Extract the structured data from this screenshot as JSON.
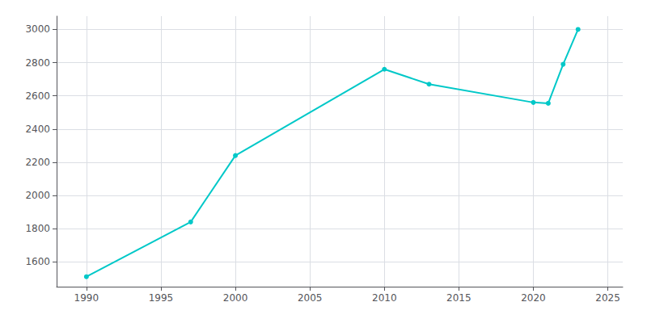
{
  "chart_data": {
    "type": "line",
    "x": [
      1990,
      1997,
      2000,
      2010,
      2013,
      2020,
      2021,
      2022,
      2023
    ],
    "values": [
      1510,
      1840,
      2240,
      2760,
      2670,
      2560,
      2555,
      2790,
      3000
    ],
    "color": "#00C8C8",
    "marker": "circle",
    "xlim": [
      1988,
      2026
    ],
    "ylim": [
      1450,
      3080
    ],
    "xticks": [
      1990,
      1995,
      2000,
      2005,
      2010,
      2015,
      2020,
      2025
    ],
    "yticks": [
      1600,
      1800,
      2000,
      2200,
      2400,
      2600,
      2800,
      3000
    ],
    "grid": true
  }
}
